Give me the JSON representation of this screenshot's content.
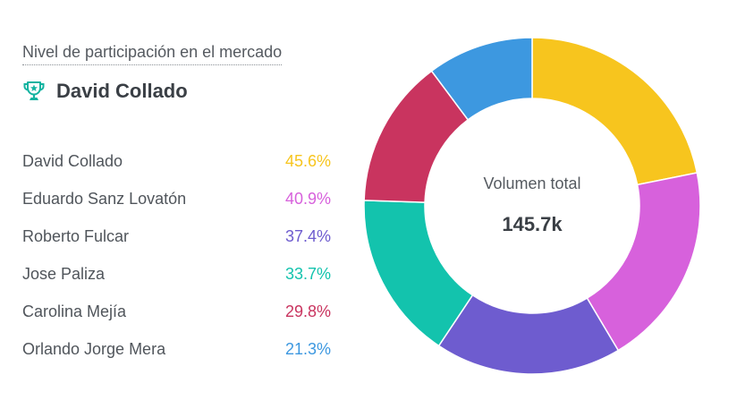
{
  "header": {
    "subtitle": "Nivel de participación en el mercado",
    "leader_name": "David Collado"
  },
  "center": {
    "label": "Volumen total",
    "value": "145.7k"
  },
  "legend": [
    {
      "name": "David Collado",
      "value": "45.6%",
      "color": "#f7c51e"
    },
    {
      "name": "Eduardo Sanz Lovatón",
      "value": "40.9%",
      "color": "#d761dc"
    },
    {
      "name": "Roberto Fulcar",
      "value": "37.4%",
      "color": "#6e5ccf"
    },
    {
      "name": "Jose Paliza",
      "value": "33.7%",
      "color": "#13c3ad"
    },
    {
      "name": "Carolina Mejía",
      "value": "29.8%",
      "color": "#c9345f"
    },
    {
      "name": "Orlando Jorge Mera",
      "value": "21.3%",
      "color": "#3d98e0"
    }
  ],
  "chart_data": {
    "type": "pie",
    "variant": "donut",
    "title": "Nivel de participación en el mercado",
    "center_label": "Volumen total",
    "total": "145.7k",
    "categories": [
      "David Collado",
      "Eduardo Sanz Lovatón",
      "Roberto Fulcar",
      "Jose Paliza",
      "Carolina Mejía",
      "Orlando Jorge Mera"
    ],
    "values": [
      45.6,
      40.9,
      37.4,
      33.7,
      29.8,
      21.3
    ],
    "colors": [
      "#f7c51e",
      "#d761dc",
      "#6e5ccf",
      "#13c3ad",
      "#c9345f",
      "#3d98e0"
    ]
  },
  "colors": {
    "icon_teal": "#13b3a0",
    "text_dark": "#3a3f45",
    "text_muted": "#555a60"
  }
}
